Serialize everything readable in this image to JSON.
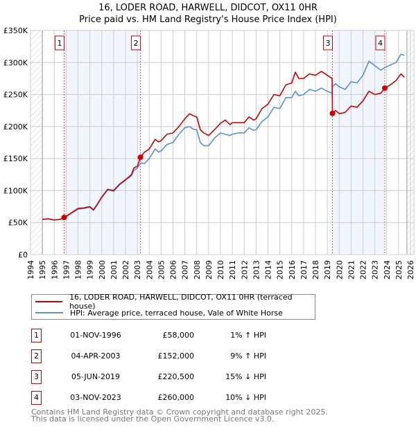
{
  "title": "16, LODER ROAD, HARWELL, DIDCOT, OX11 0HR",
  "subtitle": "Price paid vs. HM Land Registry's House Price Index (HPI)",
  "chart_data": {
    "type": "line",
    "title": "16, LODER ROAD, HARWELL, DIDCOT, OX11 0HR — Price paid vs. HM Land Registry's House Price Index (HPI)",
    "xlim": [
      1994,
      2026
    ],
    "ylim": [
      0,
      350000
    ],
    "grid": true,
    "x_ticks": [
      "1994",
      "1995",
      "1996",
      "1997",
      "1998",
      "1999",
      "2000",
      "2001",
      "2002",
      "2003",
      "2004",
      "2005",
      "2006",
      "2007",
      "2008",
      "2009",
      "2010",
      "2011",
      "2012",
      "2013",
      "2014",
      "2015",
      "2016",
      "2017",
      "2018",
      "2019",
      "2020",
      "2021",
      "2022",
      "2023",
      "2024",
      "2025",
      "2026"
    ],
    "y_ticks": [
      {
        "v": 0,
        "label": "£0"
      },
      {
        "v": 50000,
        "label": "£50K"
      },
      {
        "v": 100000,
        "label": "£100K"
      },
      {
        "v": 150000,
        "label": "£150K"
      },
      {
        "v": 200000,
        "label": "£200K"
      },
      {
        "v": 250000,
        "label": "£250K"
      },
      {
        "v": 300000,
        "label": "£300K"
      },
      {
        "v": 350000,
        "label": "£350K"
      }
    ],
    "series": [
      {
        "name": "16, LODER ROAD, HARWELL, DIDCOT, OX11 0HR (terraced house)",
        "color": "#cc0000",
        "x": [
          1995,
          1995.5,
          1996,
          1996.5,
          1996.83,
          1997.5,
          1998,
          1998.5,
          1999,
          1999.3,
          1999.6,
          2000,
          2000.5,
          2001,
          2001.5,
          2002,
          2002.5,
          2002.7,
          2003,
          2003.26,
          2003.6,
          2004,
          2004.5,
          2004.8,
          2005,
          2005.5,
          2006,
          2006.5,
          2007,
          2007.4,
          2007.7,
          2008,
          2008.3,
          2008.6,
          2009,
          2009.5,
          2010,
          2010.4,
          2010.8,
          2011,
          2011.5,
          2012,
          2012.4,
          2012.8,
          2013,
          2013.5,
          2014,
          2014.5,
          2015,
          2015.5,
          2016,
          2016.3,
          2016.6,
          2017,
          2017.5,
          2018,
          2018.5,
          2019,
          2019.4,
          2019.43,
          2019.7,
          2020,
          2020.5,
          2021,
          2021.5,
          2022,
          2022.5,
          2023,
          2023.5,
          2023.84,
          2024.3,
          2024.8,
          2025.2,
          2025.5
        ],
        "values": [
          55000,
          56000,
          54000,
          55000,
          58000,
          66000,
          72000,
          73000,
          75000,
          70000,
          78000,
          90000,
          102000,
          100000,
          110000,
          117000,
          125000,
          135000,
          138000,
          152000,
          160000,
          165000,
          180000,
          176000,
          178000,
          188000,
          190000,
          200000,
          212000,
          220000,
          217000,
          215000,
          195000,
          190000,
          186000,
          195000,
          205000,
          210000,
          203000,
          206000,
          206000,
          206000,
          215000,
          210000,
          212000,
          228000,
          235000,
          250000,
          248000,
          265000,
          268000,
          285000,
          275000,
          275000,
          282000,
          280000,
          286000,
          280000,
          275000,
          220500,
          225000,
          220000,
          222000,
          232000,
          230000,
          240000,
          255000,
          250000,
          252000,
          260000,
          265000,
          272000,
          282000,
          277000
        ]
      },
      {
        "name": "HPI: Average price, terraced house, Vale of White Horse",
        "color": "#5b8fd4",
        "x": [
          1995,
          1995.5,
          1996,
          1996.5,
          1996.83,
          1997.5,
          1998,
          1998.5,
          1999,
          1999.3,
          1999.6,
          2000,
          2000.5,
          2001,
          2001.5,
          2002,
          2002.5,
          2002.7,
          2003,
          2003.26,
          2003.6,
          2004,
          2004.5,
          2004.8,
          2005,
          2005.5,
          2006,
          2006.5,
          2007,
          2007.4,
          2007.7,
          2008,
          2008.3,
          2008.6,
          2009,
          2009.5,
          2010,
          2010.4,
          2010.8,
          2011,
          2011.5,
          2012,
          2012.4,
          2012.8,
          2013,
          2013.5,
          2014,
          2014.5,
          2015,
          2015.5,
          2016,
          2016.3,
          2016.6,
          2017,
          2017.5,
          2018,
          2018.5,
          2019,
          2019.4,
          2019.43,
          2019.7,
          2020,
          2020.5,
          2021,
          2021.5,
          2022,
          2022.5,
          2023,
          2023.5,
          2023.84,
          2024.3,
          2024.8,
          2025.2,
          2025.5
        ],
        "values": [
          55000,
          56000,
          54000,
          55000,
          57000,
          65000,
          71000,
          72000,
          74000,
          69000,
          77000,
          89000,
          101000,
          99000,
          109000,
          116000,
          123000,
          131000,
          135000,
          143000,
          142000,
          150000,
          165000,
          160000,
          162000,
          172000,
          175000,
          188000,
          198000,
          200000,
          196000,
          195000,
          175000,
          170000,
          170000,
          182000,
          190000,
          188000,
          186000,
          188000,
          190000,
          190000,
          198000,
          194000,
          195000,
          208000,
          215000,
          230000,
          228000,
          245000,
          245000,
          255000,
          248000,
          250000,
          258000,
          255000,
          260000,
          255000,
          252000,
          262000,
          267000,
          262000,
          258000,
          270000,
          268000,
          280000,
          302000,
          295000,
          288000,
          292000,
          296000,
          300000,
          313000,
          311000
        ]
      }
    ],
    "sales": [
      {
        "n": "1",
        "x": 1996.83,
        "value": 58000
      },
      {
        "n": "2",
        "x": 2003.26,
        "value": 152000
      },
      {
        "n": "3",
        "x": 2019.43,
        "value": 220500
      },
      {
        "n": "4",
        "x": 2023.84,
        "value": 260000
      }
    ],
    "legend_position": "below"
  },
  "legend": [
    {
      "label": "16, LODER ROAD, HARWELL, DIDCOT, OX11 0HR (terraced house)",
      "color": "#cc0000"
    },
    {
      "label": "HPI: Average price, terraced house, Vale of White Horse",
      "color": "#5b8fd4"
    }
  ],
  "table": [
    {
      "n": "1",
      "date": "01-NOV-1996",
      "price": "£58,000",
      "hpi": "1% ↑ HPI"
    },
    {
      "n": "2",
      "date": "04-APR-2003",
      "price": "£152,000",
      "hpi": "9% ↑ HPI"
    },
    {
      "n": "3",
      "date": "05-JUN-2019",
      "price": "£220,500",
      "hpi": "15% ↓ HPI"
    },
    {
      "n": "4",
      "date": "03-NOV-2023",
      "price": "£260,000",
      "hpi": "10% ↓ HPI"
    }
  ],
  "footer": {
    "line1": "Contains HM Land Registry data © Crown copyright and database right 2025.",
    "line2": "This data is licensed under the Open Government Licence v3.0."
  }
}
